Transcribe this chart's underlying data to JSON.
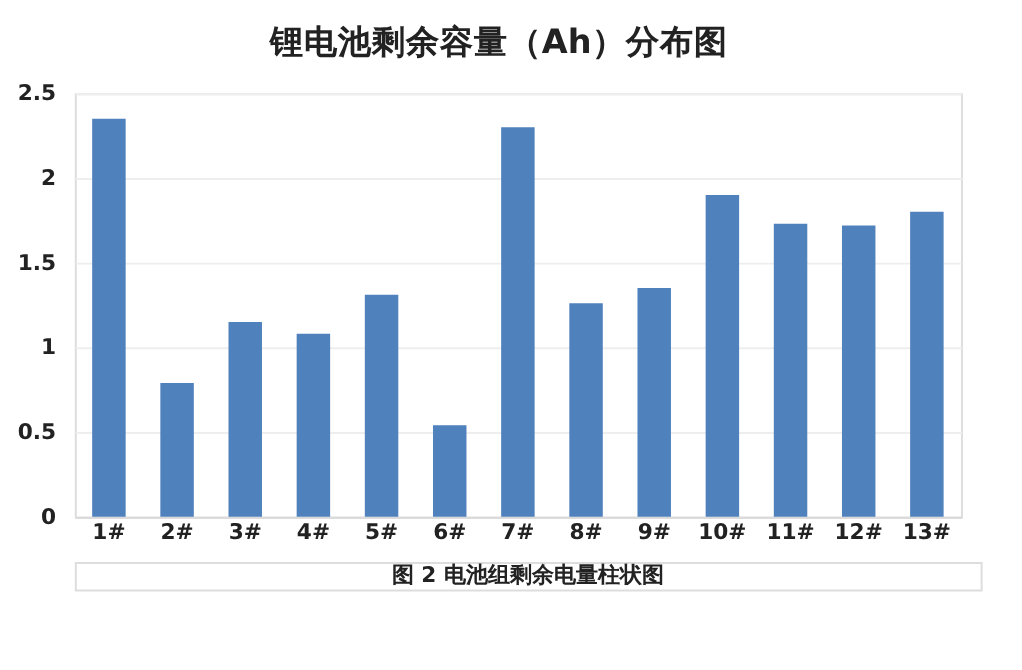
{
  "chart_data": {
    "type": "bar",
    "title": "锂电池剩余容量（Ah）分布图",
    "categories": [
      "1#",
      "2#",
      "3#",
      "4#",
      "5#",
      "6#",
      "7#",
      "8#",
      "9#",
      "10#",
      "11#",
      "12#",
      "13#"
    ],
    "values": [
      2.35,
      0.79,
      1.15,
      1.08,
      1.31,
      0.54,
      2.3,
      1.26,
      1.35,
      1.9,
      1.73,
      1.72,
      1.8
    ],
    "color": "#4f81bd",
    "ylim": [
      0,
      2.5
    ],
    "yticks": [
      0,
      0.5,
      1,
      1.5,
      2,
      2.5
    ],
    "grid": "y",
    "annotations": [
      "图 2  电池组剩余电量柱状图"
    ]
  }
}
